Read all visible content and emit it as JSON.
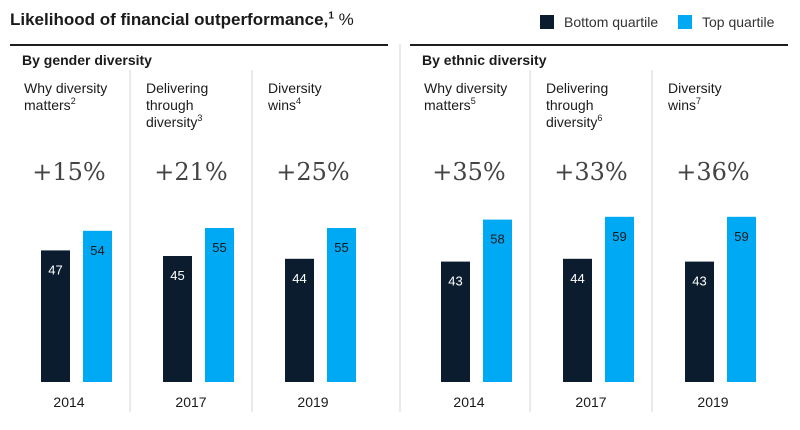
{
  "header": {
    "title": "Likelihood of financial outperformance,",
    "title_sup": "1",
    "title_unit": " %"
  },
  "legend": {
    "bottom": {
      "label": "Bottom quartile",
      "color": "#0a1c2e"
    },
    "top": {
      "label": "Top quartile",
      "color": "#00a9f4"
    }
  },
  "chart_data": {
    "type": "bar",
    "groups": [
      {
        "name": "By gender diversity",
        "studies": [
          {
            "label": "Why diversity matters",
            "sup": "2",
            "year": "2014",
            "pct": "+15%",
            "bottom": 47,
            "top": 54
          },
          {
            "label": "Delivering through diversity",
            "sup": "3",
            "year": "2017",
            "pct": "+21%",
            "bottom": 45,
            "top": 55
          },
          {
            "label": "Diversity wins",
            "sup": "4",
            "year": "2019",
            "pct": "+25%",
            "bottom": 44,
            "top": 55
          }
        ]
      },
      {
        "name": "By ethnic diversity",
        "studies": [
          {
            "label": "Why diversity matters",
            "sup": "5",
            "year": "2014",
            "pct": "+35%",
            "bottom": 43,
            "top": 58
          },
          {
            "label": "Delivering through diversity",
            "sup": "6",
            "year": "2017",
            "pct": "+33%",
            "bottom": 44,
            "top": 59
          },
          {
            "label": "Diversity wins",
            "sup": "7",
            "year": "2019",
            "pct": "+36%",
            "bottom": 43,
            "top": 59
          }
        ]
      }
    ],
    "series": [
      "Bottom quartile",
      "Top quartile"
    ],
    "ylim": [
      0,
      100
    ]
  }
}
